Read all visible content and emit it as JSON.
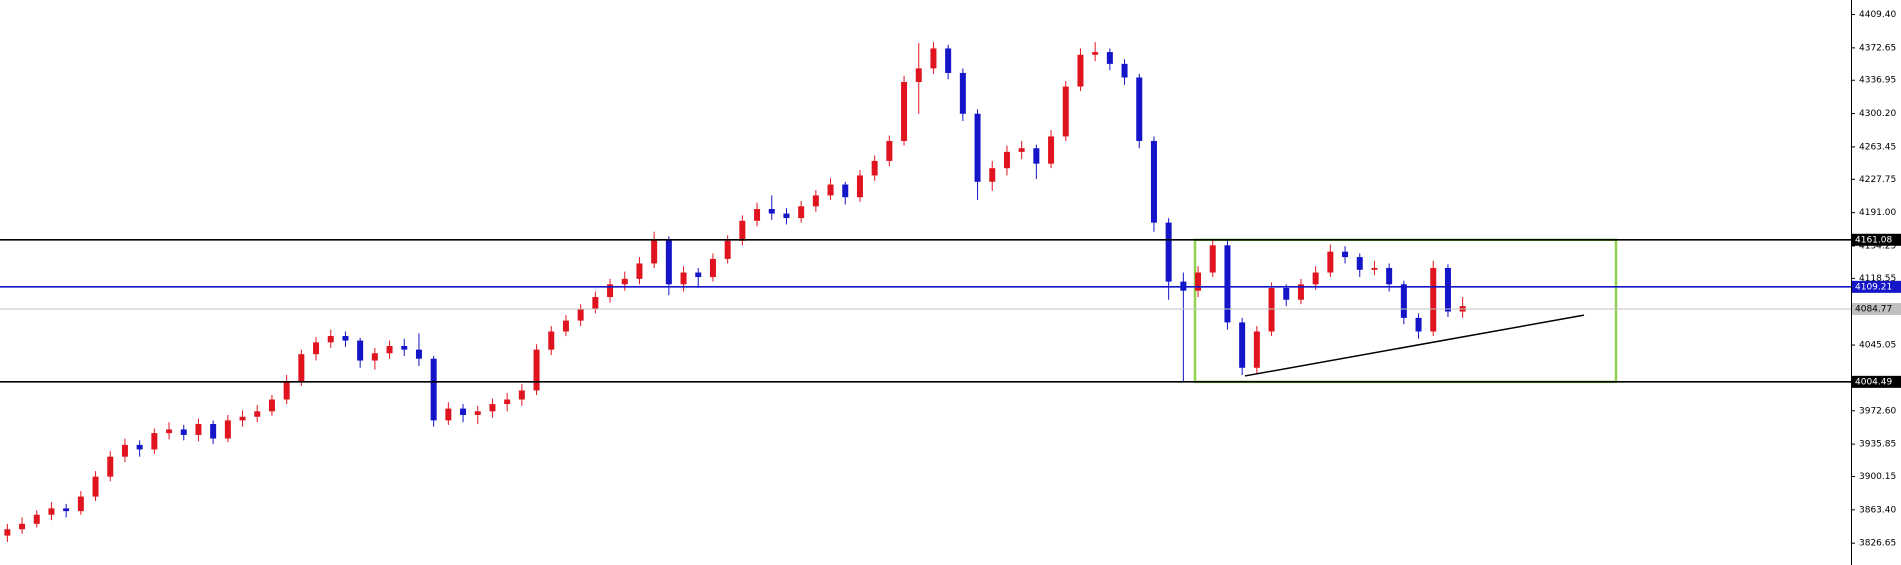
{
  "chart_data": {
    "type": "candlestick",
    "up_color": "#e0141e",
    "down_color": "#1414c8",
    "ylim": [
      3802.6,
      4425.4
    ],
    "yticks": [
      {
        "value": 4409.4,
        "label": "4409.40"
      },
      4372.65,
      4336.95,
      {
        "value": 4300.2,
        "label": "4300.20"
      },
      4263.45,
      4227.75,
      {
        "value": 4191.0,
        "label": "4191.00"
      },
      4154.25,
      4118.55,
      4045.05,
      {
        "value": 3972.6,
        "label": "3972.60"
      },
      3935.85,
      3900.15,
      {
        "value": 3863.4,
        "label": "3863.40"
      },
      3826.65
    ],
    "levels": [
      {
        "value": 4161.08,
        "color": "#000000",
        "text_color": "#ffffff"
      },
      {
        "value": 4109.21,
        "color": "#1414c8",
        "text_color": "#ffffff"
      },
      {
        "value": 4084.77,
        "color": "#c0c0c0",
        "text_color": "#000000"
      },
      {
        "value": 4004.49,
        "color": "#000000",
        "text_color": "#ffffff"
      }
    ],
    "box_color": "#92d050",
    "trend_line": {
      "values": [
        4011,
        4078
      ],
      "color": "#000000"
    },
    "open": [
      3835,
      3842,
      3848,
      3858,
      3865,
      3862,
      3878,
      3900,
      3922,
      3935,
      3930,
      3948,
      3952,
      3946,
      3958,
      3942,
      3962,
      3966,
      3972,
      3985,
      4005,
      4035,
      4048,
      4055,
      4050,
      4028,
      4036,
      4044,
      4040,
      4030,
      3962,
      3975,
      3968,
      3972,
      3980,
      3985,
      3995,
      4040,
      4060,
      4072,
      4085,
      4098,
      4112,
      4118,
      4135,
      4162,
      4112,
      4125,
      4120,
      4140,
      4160,
      4182,
      4195,
      4190,
      4185,
      4198,
      4210,
      4222,
      4208,
      4232,
      4248,
      4270,
      4335,
      4350,
      4372,
      4345,
      4300,
      4225,
      4240,
      4258,
      4262,
      4245,
      4275,
      4330,
      4365,
      4368,
      4355,
      4340,
      4270,
      4180,
      4115,
      4105,
      4125,
      4155,
      4070,
      4020,
      4060,
      4108,
      4095,
      4112,
      4125,
      4148,
      4142,
      4128,
      4130,
      4112,
      4075,
      4060,
      4130,
      4082
    ],
    "high": [
      3848,
      3855,
      3863,
      3872,
      3870,
      3884,
      3906,
      3928,
      3942,
      3940,
      3953,
      3960,
      3957,
      3964,
      3962,
      3968,
      3973,
      3979,
      3990,
      4012,
      4040,
      4054,
      4062,
      4060,
      4053,
      4042,
      4050,
      4052,
      4058,
      4033,
      3982,
      3980,
      3978,
      3986,
      3992,
      4002,
      4046,
      4066,
      4078,
      4090,
      4104,
      4118,
      4126,
      4142,
      4170,
      4165,
      4132,
      4130,
      4146,
      4166,
      4188,
      4202,
      4210,
      4196,
      4204,
      4216,
      4229,
      4225,
      4238,
      4254,
      4276,
      4342,
      4378,
      4379,
      4376,
      4350,
      4305,
      4248,
      4265,
      4270,
      4266,
      4282,
      4336,
      4372,
      4379,
      4372,
      4360,
      4344,
      4275,
      4185,
      4125,
      4132,
      4162,
      4160,
      4075,
      4066,
      4114,
      4112,
      4118,
      4132,
      4156,
      4154,
      4146,
      4138,
      4135,
      4116,
      4080,
      4138,
      4134,
      4098
    ],
    "low": [
      3828,
      3837,
      3844,
      3852,
      3855,
      3858,
      3873,
      3895,
      3916,
      3922,
      3925,
      3941,
      3940,
      3939,
      3936,
      3938,
      3955,
      3960,
      3967,
      3980,
      4000,
      4028,
      4042,
      4043,
      4020,
      4018,
      4030,
      4033,
      4022,
      3955,
      3957,
      3960,
      3958,
      3965,
      3972,
      3978,
      3990,
      4034,
      4055,
      4066,
      4080,
      4092,
      4105,
      4112,
      4130,
      4100,
      4104,
      4108,
      4115,
      4135,
      4155,
      4176,
      4183,
      4178,
      4180,
      4192,
      4205,
      4200,
      4203,
      4226,
      4242,
      4265,
      4300,
      4344,
      4338,
      4292,
      4205,
      4215,
      4232,
      4250,
      4228,
      4240,
      4270,
      4325,
      4358,
      4348,
      4332,
      4262,
      4170,
      4095,
      4004,
      4098,
      4120,
      4062,
      4012,
      4014,
      4055,
      4088,
      4090,
      4106,
      4120,
      4135,
      4120,
      4122,
      4104,
      4068,
      4052,
      4055,
      4076,
      4075
    ],
    "close": [
      3842,
      3848,
      3858,
      3865,
      3862,
      3878,
      3900,
      3922,
      3935,
      3930,
      3948,
      3952,
      3946,
      3958,
      3942,
      3962,
      3966,
      3972,
      3985,
      4005,
      4035,
      4048,
      4055,
      4050,
      4028,
      4036,
      4044,
      4040,
      4030,
      3962,
      3975,
      3968,
      3972,
      3980,
      3985,
      3995,
      4040,
      4060,
      4072,
      4085,
      4098,
      4112,
      4118,
      4135,
      4162,
      4112,
      4125,
      4120,
      4140,
      4160,
      4182,
      4195,
      4190,
      4185,
      4198,
      4210,
      4222,
      4208,
      4232,
      4248,
      4270,
      4335,
      4350,
      4372,
      4345,
      4300,
      4225,
      4240,
      4258,
      4262,
      4245,
      4275,
      4330,
      4365,
      4368,
      4355,
      4340,
      4270,
      4180,
      4115,
      4105,
      4125,
      4155,
      4070,
      4020,
      4060,
      4108,
      4095,
      4112,
      4125,
      4148,
      4142,
      4128,
      4130,
      4112,
      4075,
      4060,
      4130,
      4082,
      4088
    ]
  }
}
